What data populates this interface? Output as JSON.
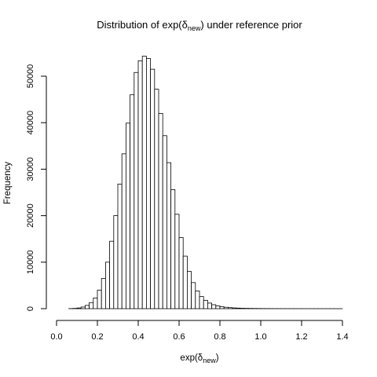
{
  "chart_data": {
    "type": "bar",
    "title": {
      "prefix": "Distribution of exp(",
      "symbol": "δ",
      "subscript": "new",
      "suffix": ") under reference prior"
    },
    "xlabel": {
      "prefix": "exp(",
      "symbol": "δ",
      "subscript": "new",
      "suffix": ")"
    },
    "ylabel": "Frequency",
    "xlim": [
      0.0,
      1.45
    ],
    "ylim": [
      0,
      55000
    ],
    "x_ticks": [
      0.0,
      0.2,
      0.4,
      0.6,
      0.8,
      1.0,
      1.2,
      1.4
    ],
    "x_tick_labels": [
      "0.0",
      "0.2",
      "0.4",
      "0.6",
      "0.8",
      "1.0",
      "1.2",
      "1.4"
    ],
    "y_ticks": [
      0,
      10000,
      20000,
      30000,
      40000,
      50000
    ],
    "y_tick_labels": [
      "0",
      "10000",
      "20000",
      "30000",
      "40000",
      "50000"
    ],
    "bin_width": 0.02,
    "bin_start": 0.06,
    "values": [
      20,
      60,
      150,
      350,
      700,
      1300,
      2300,
      4000,
      6500,
      10000,
      14500,
      20000,
      26800,
      33300,
      39900,
      46000,
      50800,
      53300,
      54300,
      53800,
      51500,
      47200,
      42000,
      37200,
      31400,
      25600,
      20300,
      15300,
      11300,
      8000,
      5600,
      3800,
      2600,
      1800,
      1200,
      850,
      600,
      420,
      300,
      220,
      160,
      120,
      90,
      70,
      55,
      45,
      35,
      28,
      22,
      18,
      14,
      11,
      9,
      7,
      6,
      5,
      4,
      3,
      3,
      2,
      2,
      2,
      1,
      1,
      1,
      1,
      1
    ],
    "grid": false,
    "legend": "none"
  }
}
